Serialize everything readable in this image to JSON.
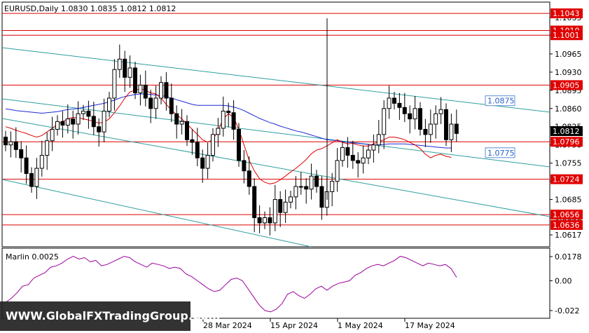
{
  "chart_data": [
    {
      "type": "candlestick",
      "title": "EURUSD,Daily  1.0830 1.0835 1.0812 1.0812",
      "symbol": "EURUSD",
      "timeframe": "Daily",
      "ohlc_last": [
        1.083,
        1.0835,
        1.0812,
        1.0812
      ],
      "current_price_label": "1.0812",
      "ylim": [
        1.06,
        1.1055
      ],
      "y_ticks": [
        "1.1035",
        "1.1001",
        "1.0965",
        "1.0930",
        "1.0895",
        "1.0860",
        "1.0825",
        "1.0790",
        "1.0755",
        "1.0720",
        "1.0685",
        "1.0650",
        "1.0617"
      ],
      "x_ticks": [
        "28 Mar 2024",
        "15 Apr 2024",
        "1 May 2024",
        "17 May 2024"
      ],
      "horizontal_levels": [
        {
          "label": "1.1043",
          "value": 1.1043
        },
        {
          "label": "1.1010",
          "value": 1.101
        },
        {
          "label": "1.1001",
          "value": 1.1001
        },
        {
          "label": "1.0905",
          "value": 1.0905
        },
        {
          "label": "1.0796",
          "value": 1.0796
        },
        {
          "label": "1.0724",
          "value": 1.0724
        },
        {
          "label": "1.0656",
          "value": 1.0656
        },
        {
          "label": "1.0636",
          "value": 1.0636
        }
      ],
      "annotations": [
        {
          "label": "1.0875",
          "value": 1.0875
        },
        {
          "label": "1.0775",
          "value": 1.0775
        }
      ],
      "closes": [
        1.079,
        1.0796,
        1.0781,
        1.0765,
        1.0735,
        1.071,
        1.0745,
        1.077,
        1.0798,
        1.082,
        1.0835,
        1.0828,
        1.084,
        1.083,
        1.085,
        1.0855,
        1.0845,
        1.0825,
        1.0815,
        1.0855,
        1.088,
        1.0935,
        1.0955,
        1.092,
        1.0938,
        1.089,
        1.0905,
        1.088,
        1.086,
        1.088,
        1.091,
        1.088,
        1.085,
        1.083,
        1.0835,
        1.08,
        1.0795,
        1.0765,
        1.0745,
        1.077,
        1.081,
        1.0822,
        1.0855,
        1.0852,
        1.082,
        1.076,
        1.074,
        1.071,
        1.065,
        1.064,
        1.065,
        1.064,
        1.0685,
        1.066,
        1.068,
        1.069,
        1.071,
        1.071,
        1.0705,
        1.073,
        1.071,
        1.067,
        1.07,
        1.072,
        1.076,
        1.0785,
        1.077,
        1.076,
        1.0755,
        1.0765,
        1.078,
        1.079,
        1.081,
        1.086,
        1.088,
        1.087,
        1.0862,
        1.085,
        1.084,
        1.086,
        1.082,
        1.081,
        1.083,
        1.085,
        1.0858,
        1.08,
        1.083,
        1.0812
      ],
      "sma_blue": [
        1.0859,
        1.0858,
        1.0856,
        1.0855,
        1.0854,
        1.0853,
        1.0852,
        1.0851,
        1.0852,
        1.0853,
        1.0854,
        1.0856,
        1.0858,
        1.0859,
        1.086,
        1.0862,
        1.0864,
        1.0866,
        1.0868,
        1.087,
        1.0873,
        1.0876,
        1.088,
        1.0883,
        1.0885,
        1.0887,
        1.0888,
        1.0888,
        1.0887,
        1.0886,
        1.0885,
        1.0883,
        1.088,
        1.0877,
        1.0874,
        1.0871,
        1.0868,
        1.0866,
        1.0866,
        1.0866,
        1.0866,
        1.0866,
        1.0866,
        1.0865,
        1.0863,
        1.086,
        1.0856,
        1.0851,
        1.0846,
        1.0841,
        1.0837,
        1.0833,
        1.083,
        1.0826,
        1.0823,
        1.082,
        1.0817,
        1.0815,
        1.0812,
        1.0809,
        1.0806,
        1.0803,
        1.08,
        1.0799,
        1.0798,
        1.0796,
        1.0795,
        1.0794,
        1.0793,
        1.0792,
        1.0791,
        1.079,
        1.079,
        1.0791,
        1.0792,
        1.0792,
        1.0792,
        1.0792,
        1.0791,
        1.079,
        1.0789,
        1.0788,
        1.0787,
        1.0786,
        1.0785,
        1.0784,
        1.0784
      ],
      "sma_red": [
        1.0825,
        1.0822,
        1.0818,
        1.0815,
        1.0812,
        1.0808,
        1.0805,
        1.0808,
        1.0815,
        1.0822,
        1.083,
        1.0835,
        1.084,
        1.0843,
        1.0842,
        1.084,
        1.0838,
        1.0835,
        1.0832,
        1.0834,
        1.084,
        1.0852,
        1.0865,
        1.088,
        1.0892,
        1.0895,
        1.0898,
        1.0895,
        1.089,
        1.0888,
        1.088,
        1.0868,
        1.0857,
        1.0848,
        1.084,
        1.083,
        1.082,
        1.081,
        1.08,
        1.0795,
        1.08,
        1.0818,
        1.084,
        1.085,
        1.0843,
        1.082,
        1.079,
        1.076,
        1.074,
        1.0725,
        1.0718,
        1.0715,
        1.0717,
        1.0723,
        1.073,
        1.0738,
        1.0745,
        1.0753,
        1.0762,
        1.0773,
        1.078,
        1.0783,
        1.0788,
        1.0794,
        1.08,
        1.0795,
        1.0792,
        1.0793,
        1.079,
        1.0788,
        1.0788,
        1.0792,
        1.0796,
        1.08,
        1.0805,
        1.0805,
        1.0803,
        1.08,
        1.0795,
        1.079,
        1.0783,
        1.0772,
        1.0765,
        1.077,
        1.0772,
        1.0768,
        1.0766
      ],
      "channel_lines": [
        "upper",
        "middle",
        "lower",
        "outer-lower"
      ]
    },
    {
      "type": "line",
      "title": "Marlin 0.0025",
      "indicator": "Marlin",
      "current_value": 0.0025,
      "y_ticks": [
        "0.0178",
        "0.00",
        "-0.022"
      ],
      "ylim": [
        -0.025,
        0.021
      ],
      "values": [
        -0.016,
        -0.013,
        -0.009,
        -0.004,
        -0.003,
        0.002,
        0.004,
        0.006,
        0.01,
        0.011,
        0.013,
        0.016,
        0.018,
        0.016,
        0.017,
        0.014,
        0.015,
        0.011,
        0.012,
        0.014,
        0.016,
        0.018,
        0.017,
        0.014,
        0.012,
        0.01,
        0.013,
        0.012,
        0.011,
        0.009,
        0.01,
        0.009,
        0.005,
        0.003,
        0.0,
        -0.003,
        -0.006,
        -0.008,
        -0.007,
        -0.003,
        0.001,
        0.002,
        0.0,
        -0.006,
        -0.012,
        -0.018,
        -0.022,
        -0.023,
        -0.021,
        -0.017,
        -0.01,
        -0.008,
        -0.011,
        -0.013,
        -0.01,
        -0.006,
        -0.004,
        -0.007,
        -0.004,
        -0.002,
        -0.001,
        0.0,
        0.004,
        0.006,
        0.009,
        0.011,
        0.012,
        0.011,
        0.013,
        0.015,
        0.018,
        0.017,
        0.015,
        0.013,
        0.011,
        0.013,
        0.012,
        0.011,
        0.012,
        0.009,
        0.0025
      ]
    }
  ],
  "watermark": "WWW.GlobalFXTradingGroup.Com"
}
